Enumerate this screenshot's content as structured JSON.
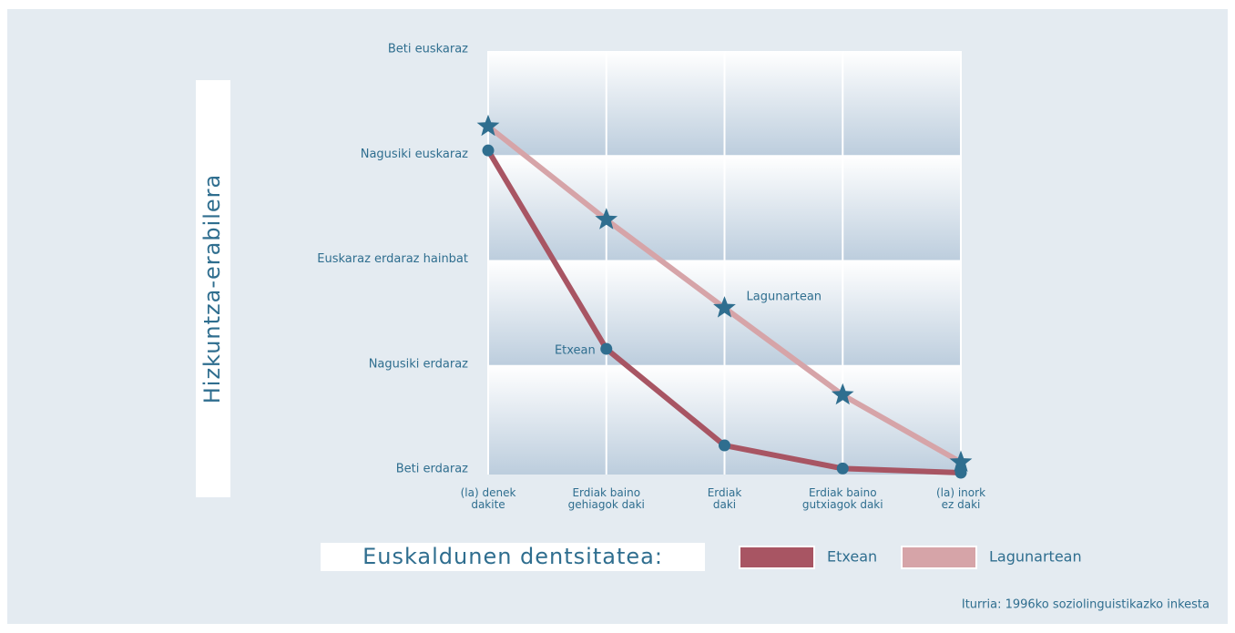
{
  "chart_data": {
    "type": "line",
    "y_title": "Hizkuntza-erabilera",
    "legend_title": "Euskaldunen dentsitatea:",
    "source": "Iturria: 1996ko soziolinguistikazko inkesta",
    "categories": [
      "(la) denek\ndakite",
      "Erdiak baino\ngehiagok daki",
      "Erdiak\ndaki",
      "Erdiak baino\ngutxiagok daki",
      "(la) inork\nez daki"
    ],
    "series": [
      {
        "name": "Etxean",
        "color": "#a85563",
        "marker": "circle",
        "marker_color": "#2f6e8f",
        "values": [
          3.07,
          1.18,
          0.26,
          0.04,
          0
        ]
      },
      {
        "name": "Lagunartean",
        "color": "#d6a4a8",
        "marker": "star",
        "marker_color": "#2f6e8f",
        "values": [
          3.3,
          2.41,
          1.57,
          0.74,
          0.1
        ]
      }
    ],
    "ylim": [
      0,
      4
    ],
    "yticks": [
      {
        "value": 0,
        "label": "Beti erdaraz"
      },
      {
        "value": 1,
        "label": "Nagusiki erdaraz"
      },
      {
        "value": 2,
        "label": "Euskaraz erdaraz hainbat"
      },
      {
        "value": 3,
        "label": "Nagusiki euskaraz"
      },
      {
        "value": 4,
        "label": "Beti euskaraz"
      }
    ],
    "grid": true
  }
}
